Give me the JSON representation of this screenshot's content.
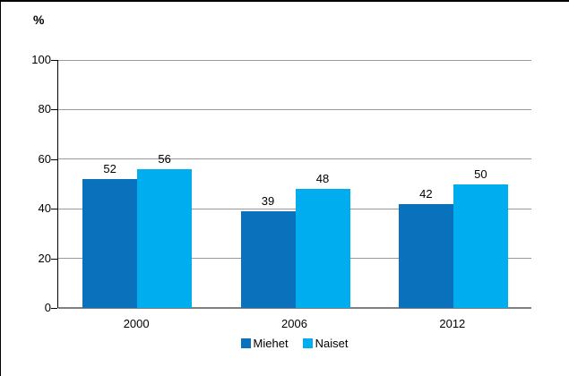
{
  "chart_data": {
    "type": "bar",
    "title": "",
    "ylabel": "%",
    "xlabel": "",
    "categories": [
      "2000",
      "2006",
      "2012"
    ],
    "series": [
      {
        "name": "Miehet",
        "color": "#0a72bd",
        "values": [
          52,
          39,
          42
        ]
      },
      {
        "name": "Naiset",
        "color": "#00aeef",
        "values": [
          56,
          48,
          50
        ]
      }
    ],
    "ylim": [
      0,
      100
    ],
    "yticks": [
      0,
      20,
      40,
      60,
      80,
      100
    ],
    "grid": true,
    "bar_value_labels": true,
    "legend_position": "bottom"
  },
  "colors": {
    "gridline": "#999999",
    "baseline": "#808080",
    "axis": "#000000",
    "text": "#000000",
    "background": "#ffffff",
    "frame_border": "#000000"
  }
}
